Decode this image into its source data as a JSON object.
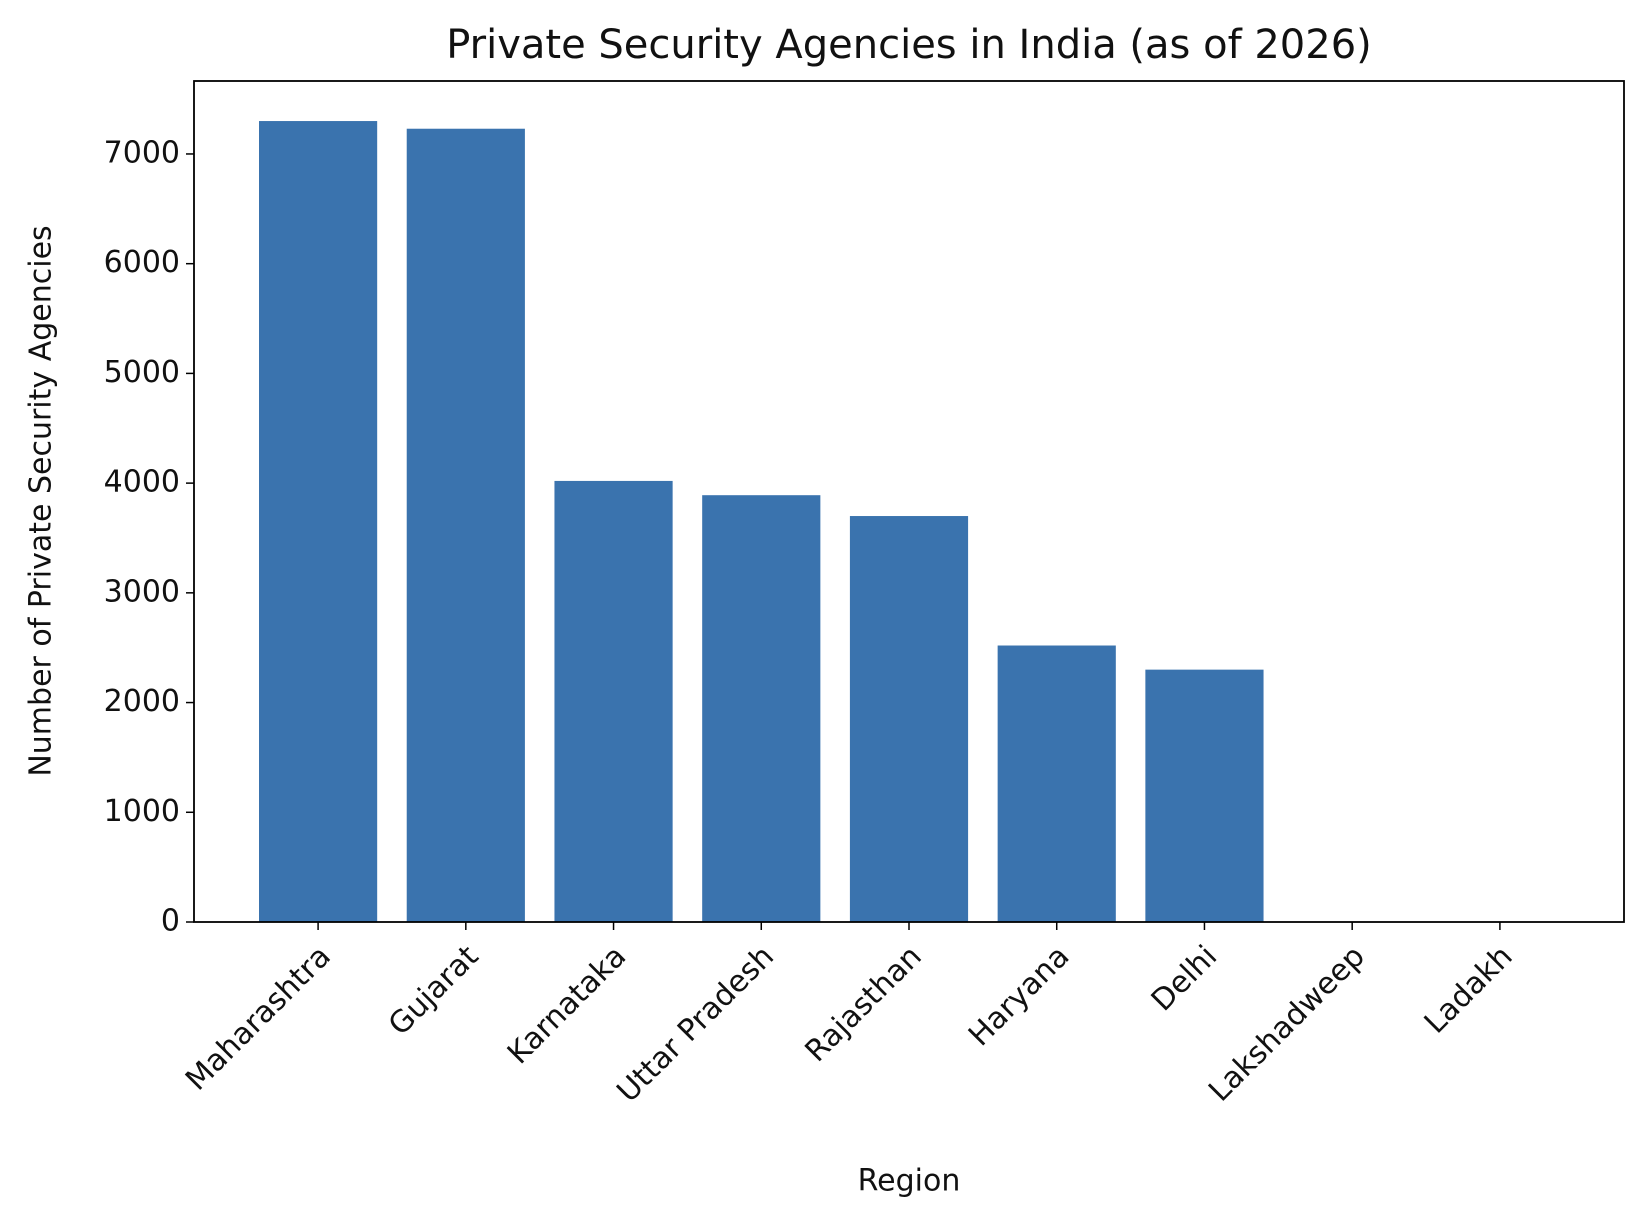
{
  "chart_data": {
    "type": "bar",
    "title": "Private Security Agencies in India (as of 2026)",
    "x_label": "Region",
    "y_label": "Number of Private Security Agencies",
    "categories": [
      "Maharashtra",
      "Gujarat",
      "Karnataka",
      "Uttar Pradesh",
      "Rajasthan",
      "Haryana",
      "Delhi",
      "Lakshadweep",
      "Ladakh"
    ],
    "values": [
      7300,
      7230,
      4020,
      3890,
      3700,
      2520,
      2300,
      0,
      0
    ],
    "color": "#3a73ae",
    "ylim": [
      0,
      7665
    ],
    "yticks": [
      0,
      1000,
      2000,
      3000,
      4000,
      5000,
      6000,
      7000
    ],
    "grid": false
  }
}
